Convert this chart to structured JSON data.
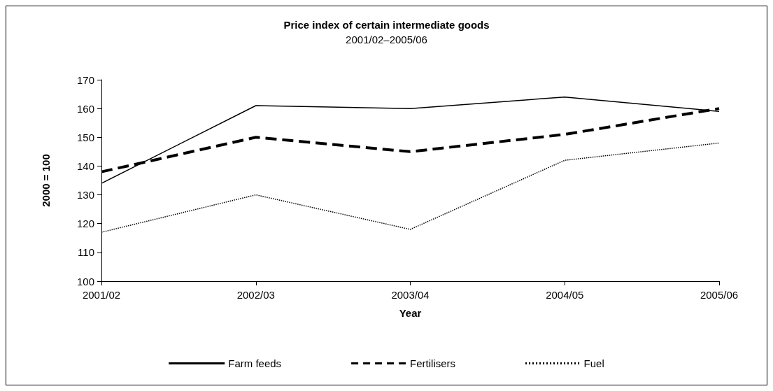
{
  "chart_data": {
    "type": "line",
    "title": "Price index of certain intermediate goods",
    "subtitle": "2001/02–2005/06",
    "xlabel": "Year",
    "ylabel": "2000 = 100",
    "categories": [
      "2001/02",
      "2002/03",
      "2003/04",
      "2004/05",
      "2005/06"
    ],
    "series": [
      {
        "name": "Farm feeds",
        "color": "#000000",
        "line_style": "solid",
        "values": [
          134,
          161,
          160,
          164,
          159
        ]
      },
      {
        "name": "Fertilisers",
        "color": "#000000",
        "line_style": "dashed",
        "values": [
          138,
          150,
          145,
          151,
          160
        ]
      },
      {
        "name": "Fuel",
        "color": "#000000",
        "line_style": "dotted",
        "values": [
          117,
          130,
          118,
          142,
          148
        ]
      }
    ],
    "ylim": [
      100,
      170
    ],
    "yticks": [
      100,
      110,
      120,
      130,
      140,
      150,
      160,
      170
    ],
    "grid": false,
    "legend": "bottom",
    "marker": "none"
  }
}
